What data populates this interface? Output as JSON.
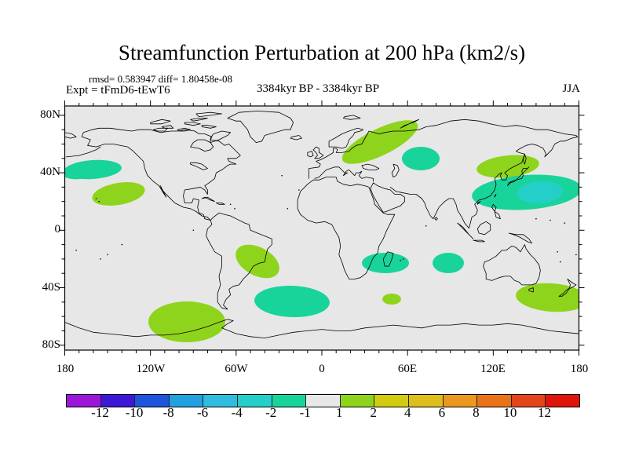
{
  "header": {
    "title": "Streamfunction Perturbation at 200 hPa (km2/s)",
    "stats_line": "rmsd= 0.583947 diff= 1.80458e-08",
    "experiment_label": "Expt = tFmD6-tEwT6",
    "period_label": "3384kyr BP - 3384kyr BP",
    "season_label": "JJA"
  },
  "map": {
    "background_color": "#E7E7E7",
    "coastline_color": "#000000",
    "frame_color": "#000000",
    "lat_ticks": [
      {
        "label": "80N",
        "lat": 80
      },
      {
        "label": "40N",
        "lat": 40
      },
      {
        "label": "0",
        "lat": 0
      },
      {
        "label": "40S",
        "lat": -40
      },
      {
        "label": "80S",
        "lat": -80
      }
    ],
    "lon_ticks": [
      {
        "label": "180",
        "lon": -180
      },
      {
        "label": "120W",
        "lon": -120
      },
      {
        "label": "60W",
        "lon": -60
      },
      {
        "label": "0",
        "lon": 0
      },
      {
        "label": "60E",
        "lon": 60
      },
      {
        "label": "120E",
        "lon": 120
      },
      {
        "label": "180",
        "lon": 180
      }
    ]
  },
  "colorbar": {
    "labels": [
      "-12",
      "-10",
      "-8",
      "-6",
      "-4",
      "-2",
      "-1",
      "1",
      "2",
      "4",
      "6",
      "8",
      "10",
      "12"
    ],
    "colors": [
      "#9C16DA",
      "#3C18D6",
      "#1D55DC",
      "#21A1DF",
      "#2FBCDF",
      "#25CFC9",
      "#19D49A",
      "#E8E8E8",
      "#8FD41C",
      "#D2CC11",
      "#DFBE1C",
      "#E8991E",
      "#EB7315",
      "#E44418",
      "#E01408"
    ]
  },
  "chart_data": {
    "type": "heatmap",
    "title": "Streamfunction Perturbation at 200 hPa (km2/s)",
    "subtitle": "3384kyr BP - 3384kyr BP",
    "experiment": "Expt = tFmD6-tEwT6",
    "season": "JJA",
    "rmsd": 0.583947,
    "diff": 1.80458e-08,
    "projection": "equirectangular world map, lon -180..180, lat ~-84..85",
    "xlabel_ticks": [
      "180",
      "120W",
      "60W",
      "0",
      "60E",
      "120E",
      "180"
    ],
    "ylabel_ticks": [
      "80N",
      "40N",
      "0",
      "40S",
      "80S"
    ],
    "colorbar_levels": [
      -12,
      -10,
      -8,
      -6,
      -4,
      -2,
      -1,
      1,
      2,
      4,
      6,
      8,
      10,
      12
    ],
    "anomaly_regions": [
      {
        "location": "North Pacific ~40N, 165W",
        "value_band": "-2 to -1"
      },
      {
        "location": "Central North Pacific ~25N, 145W",
        "value_band": "1 to 2"
      },
      {
        "location": "Scandinavia / NW Russia ~62-70N",
        "value_band": "1 to 2"
      },
      {
        "location": "Kazakhstan / Caspian ~48N, 55E",
        "value_band": "-2 to -1"
      },
      {
        "location": "Korea / Japan ~42N, 130-150E",
        "value_band": "1 to 2"
      },
      {
        "location": "Western North Pacific ~25N, 120-180E",
        "value_band": "-2 to -1"
      },
      {
        "location": "Western North Pacific inner core ~25N, 145E",
        "value_band": "-4 to -2"
      },
      {
        "location": "Southeastern South America ~22S",
        "value_band": "1 to 2"
      },
      {
        "location": "Madagascar ~20S, 45E",
        "value_band": "-2 to -1"
      },
      {
        "location": "Central Indian Ocean ~22S, 85E",
        "value_band": "-2 to -1"
      },
      {
        "location": "South Indian Ocean ~48S, 50E",
        "value_band": "1 to 2"
      },
      {
        "location": "South Atlantic ~50S, 20W",
        "value_band": "-2 to -1"
      },
      {
        "location": "SE Pacific / Antarctic Peninsula ~62S, 95W",
        "value_band": "1 to 2"
      },
      {
        "location": "South of Australia / New Zealand ~48S",
        "value_band": "1 to 2"
      }
    ]
  }
}
